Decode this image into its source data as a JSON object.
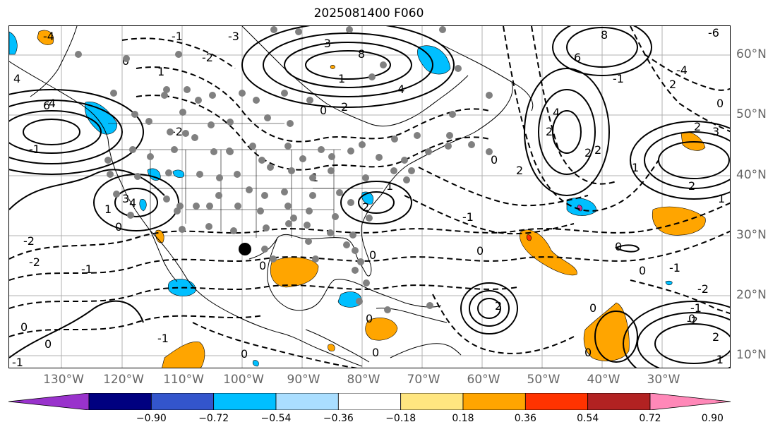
{
  "title": "2025081400 F060",
  "lon_labels": [
    "130°W",
    "120°W",
    "110°W",
    "100°W",
    "90°W",
    "80°W",
    "70°W",
    "60°W",
    "50°W",
    "40°W",
    "30°W"
  ],
  "lat_labels": [
    "60°N",
    "50°N",
    "40°N",
    "30°N",
    "20°N",
    "10°N"
  ],
  "colorbar": {
    "ticks": [
      "−0.90",
      "−0.72",
      "−0.54",
      "−0.36",
      "−0.18",
      "0.18",
      "0.36",
      "0.54",
      "0.72",
      "0.90"
    ],
    "colors": [
      "#9932cc",
      "#000080",
      "#3355cc",
      "#00bfff",
      "#aadeff",
      "#ffffff",
      "#ffe680",
      "#ffa500",
      "#ff3300",
      "#b22222",
      "#ff88b8"
    ]
  },
  "contour_labels": [
    "-6",
    "-4",
    "-3",
    "-2",
    "-1",
    "0",
    "1",
    "2",
    "3",
    "4",
    "6",
    "8"
  ],
  "colors": {
    "grid": "#b0b0b0",
    "coast": "#000000",
    "contour": "#000000",
    "station": "#808080",
    "marker": "#000000"
  }
}
